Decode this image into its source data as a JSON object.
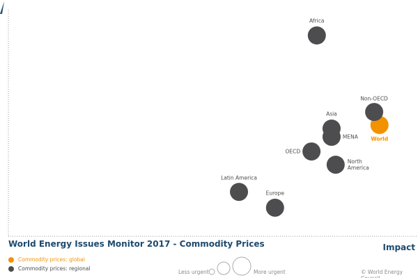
{
  "chart_data": {
    "type": "scatter",
    "title": "World Energy Issues Monitor 2017 - Commodity Prices",
    "x_label": "Impact",
    "xlim": [
      0,
      100
    ],
    "ylim": [
      0,
      100
    ],
    "series": [
      {
        "name": "Commodity prices: global",
        "color": "#f39200",
        "labels": [
          "World"
        ],
        "x": [
          90.6
        ],
        "y": [
          47.1
        ]
      },
      {
        "name": "Commodity prices: regional",
        "color": "#4d4d4f",
        "labels": [
          "Africa",
          "Non-OECD",
          "Asia",
          "MENA",
          "OECD",
          "North America",
          "Latin America",
          "Europe"
        ],
        "x": [
          75.3,
          89.3,
          78.9,
          78.9,
          74.0,
          79.9,
          56.3,
          65.1
        ],
        "y": [
          85.0,
          52.6,
          45.6,
          42.1,
          35.9,
          30.3,
          18.8,
          12.1
        ]
      }
    ],
    "size_legend": [
      "Less urgent",
      "More urgent"
    ],
    "source": "© World Energy Council"
  }
}
